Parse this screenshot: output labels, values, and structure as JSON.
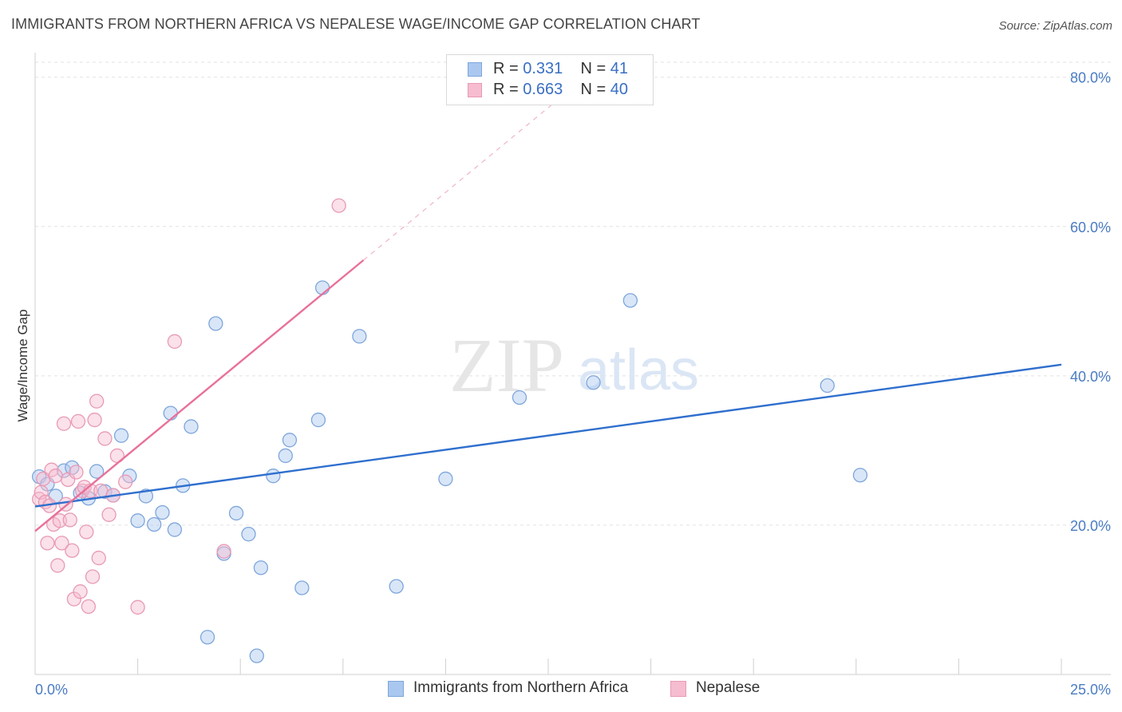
{
  "title": "IMMIGRANTS FROM NORTHERN AFRICA VS NEPALESE WAGE/INCOME GAP CORRELATION CHART",
  "source": "Source: ZipAtlas.com",
  "watermark": {
    "zip": "ZIP",
    "atlas": "atlas"
  },
  "colors": {
    "blue_fill": "#aac8ef",
    "blue_stroke": "#7ea6db",
    "blue_line": "#2f6fce",
    "pink_fill": "#f6bcd0",
    "pink_stroke": "#e89ab5",
    "pink_line": "#e8719a",
    "grid": "#e2e2e2",
    "tick_text": "#4a7cc4"
  },
  "legend": {
    "rows": [
      {
        "r_label": "R =",
        "r_value": "0.331",
        "n_label": "N =",
        "n_value": "41"
      },
      {
        "r_label": "R =",
        "r_value": "0.663",
        "n_label": "N =",
        "n_value": "40"
      }
    ]
  },
  "bottom_legend": {
    "series1": "Immigrants from Northern Africa",
    "series2": "Nepalese"
  },
  "chart_data": {
    "type": "scatter",
    "title": "IMMIGRANTS FROM NORTHERN AFRICA VS NEPALESE WAGE/INCOME GAP CORRELATION CHART",
    "xlabel": "",
    "ylabel": "Wage/Income Gap",
    "xlim": [
      0,
      25
    ],
    "ylim": [
      0,
      82
    ],
    "x_tick_labels": [
      {
        "value": 0,
        "label": "0.0%"
      },
      {
        "value": 25,
        "label": "25.0%"
      }
    ],
    "y_tick_labels": [
      {
        "value": 20,
        "label": "20.0%"
      },
      {
        "value": 40,
        "label": "40.0%"
      },
      {
        "value": 60,
        "label": "60.0%"
      },
      {
        "value": 80,
        "label": "80.0%"
      }
    ],
    "grid": true,
    "legend_position": "top-center",
    "series": [
      {
        "name": "Immigrants from Northern Africa",
        "color": "blue",
        "points": [
          [
            0.1,
            26.5
          ],
          [
            0.3,
            25.5
          ],
          [
            0.5,
            23.9
          ],
          [
            0.7,
            27.3
          ],
          [
            0.9,
            27.7
          ],
          [
            1.1,
            24.3
          ],
          [
            1.3,
            23.6
          ],
          [
            1.5,
            27.2
          ],
          [
            1.7,
            24.5
          ],
          [
            1.9,
            24.0
          ],
          [
            2.1,
            32.0
          ],
          [
            2.3,
            26.6
          ],
          [
            2.5,
            20.6
          ],
          [
            2.7,
            23.9
          ],
          [
            2.9,
            20.1
          ],
          [
            3.1,
            21.7
          ],
          [
            3.3,
            35.0
          ],
          [
            3.4,
            19.4
          ],
          [
            3.6,
            25.3
          ],
          [
            3.8,
            33.2
          ],
          [
            4.2,
            5.0
          ],
          [
            4.4,
            47.0
          ],
          [
            4.6,
            16.2
          ],
          [
            4.9,
            21.6
          ],
          [
            5.2,
            18.8
          ],
          [
            5.4,
            2.5
          ],
          [
            5.5,
            14.3
          ],
          [
            5.8,
            26.6
          ],
          [
            6.1,
            29.3
          ],
          [
            6.2,
            31.4
          ],
          [
            6.5,
            11.6
          ],
          [
            6.9,
            34.1
          ],
          [
            7.0,
            51.8
          ],
          [
            7.9,
            45.3
          ],
          [
            8.8,
            11.8
          ],
          [
            10.0,
            26.2
          ],
          [
            11.8,
            37.1
          ],
          [
            13.6,
            39.1
          ],
          [
            14.5,
            50.1
          ],
          [
            19.3,
            38.7
          ],
          [
            20.1,
            26.7
          ]
        ],
        "trend": {
          "x0": 0,
          "y0": 22.5,
          "x1": 25,
          "y1": 41.5
        }
      },
      {
        "name": "Nepalese",
        "color": "pink",
        "points": [
          [
            0.1,
            23.5
          ],
          [
            0.15,
            24.4
          ],
          [
            0.2,
            26.2
          ],
          [
            0.25,
            23.1
          ],
          [
            0.3,
            17.6
          ],
          [
            0.35,
            22.6
          ],
          [
            0.4,
            27.4
          ],
          [
            0.45,
            20.1
          ],
          [
            0.5,
            26.6
          ],
          [
            0.55,
            14.6
          ],
          [
            0.6,
            20.6
          ],
          [
            0.65,
            17.6
          ],
          [
            0.7,
            33.6
          ],
          [
            0.75,
            22.8
          ],
          [
            0.8,
            26.1
          ],
          [
            0.85,
            20.7
          ],
          [
            0.9,
            16.6
          ],
          [
            0.95,
            10.1
          ],
          [
            1.0,
            27.1
          ],
          [
            1.05,
            33.9
          ],
          [
            1.1,
            11.1
          ],
          [
            1.15,
            24.6
          ],
          [
            1.2,
            25.1
          ],
          [
            1.25,
            19.1
          ],
          [
            1.3,
            9.1
          ],
          [
            1.35,
            24.6
          ],
          [
            1.4,
            13.1
          ],
          [
            1.45,
            34.1
          ],
          [
            1.5,
            36.6
          ],
          [
            1.55,
            15.6
          ],
          [
            1.6,
            24.6
          ],
          [
            1.7,
            31.6
          ],
          [
            1.8,
            21.4
          ],
          [
            1.9,
            24.0
          ],
          [
            2.0,
            29.3
          ],
          [
            2.2,
            25.8
          ],
          [
            2.5,
            9.0
          ],
          [
            3.4,
            44.6
          ],
          [
            4.6,
            16.5
          ],
          [
            7.4,
            62.8
          ]
        ],
        "trend": {
          "x0": 0,
          "y0": 19.2,
          "x1": 8.0,
          "y1": 55.5
        },
        "trend_extension": {
          "x0": 8.0,
          "y0": 55.5,
          "x1": 13.4,
          "y1": 80.0
        }
      }
    ]
  }
}
